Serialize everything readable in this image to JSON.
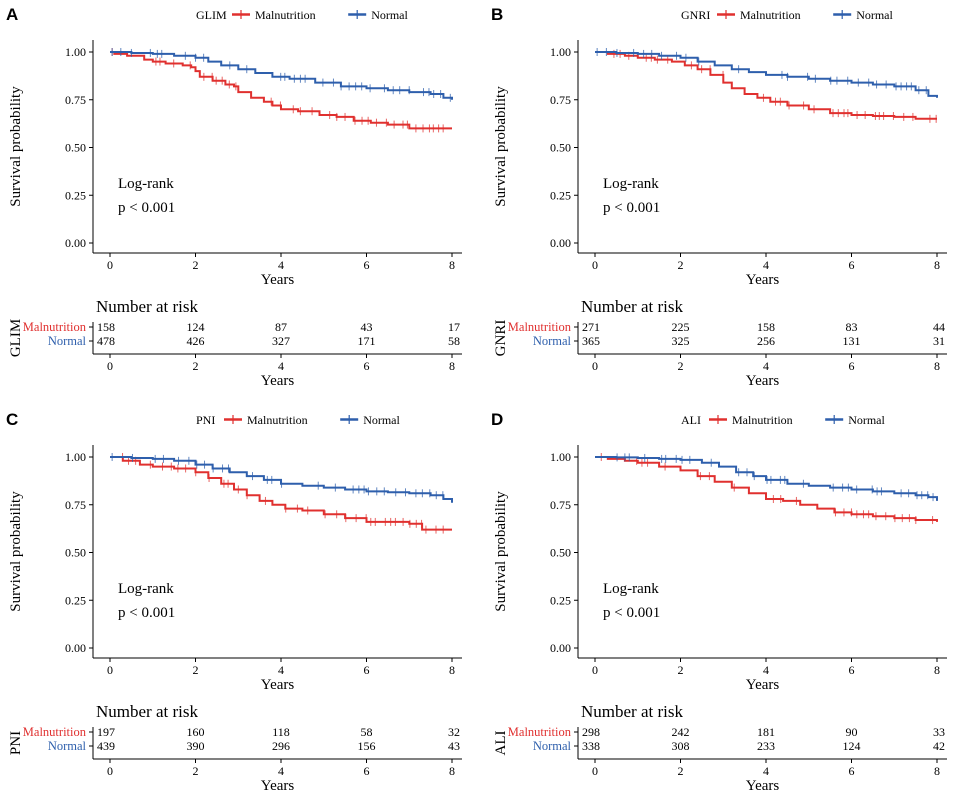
{
  "colors": {
    "malnutrition": "#E0302F",
    "normal": "#2E5FAC",
    "axis": "#000000"
  },
  "chart_data": [
    {
      "type": "line",
      "panel_letter": "A",
      "legend_title": "GLIM",
      "series": [
        {
          "name": "Malnutrition",
          "color": "#E0302F",
          "x": [
            0,
            0.1,
            0.4,
            0.8,
            1.0,
            1.3,
            1.7,
            1.9,
            2.0,
            2.1,
            2.4,
            2.7,
            2.9,
            3.0,
            3.3,
            3.6,
            3.8,
            4.0,
            4.4,
            4.9,
            5.3,
            5.7,
            6.1,
            6.5,
            7.0,
            8.0
          ],
          "y": [
            1.0,
            0.99,
            0.98,
            0.96,
            0.95,
            0.94,
            0.93,
            0.92,
            0.9,
            0.87,
            0.85,
            0.83,
            0.82,
            0.79,
            0.76,
            0.74,
            0.72,
            0.7,
            0.69,
            0.67,
            0.66,
            0.64,
            0.63,
            0.62,
            0.6,
            0.6
          ]
        },
        {
          "name": "Normal",
          "color": "#2E5FAC",
          "x": [
            0,
            0.5,
            1.0,
            1.5,
            2.0,
            2.3,
            2.6,
            3.0,
            3.4,
            3.8,
            4.2,
            4.8,
            5.4,
            6.0,
            6.5,
            7.0,
            7.5,
            7.8,
            8.0
          ],
          "y": [
            1.0,
            0.995,
            0.99,
            0.98,
            0.97,
            0.95,
            0.93,
            0.91,
            0.89,
            0.87,
            0.86,
            0.84,
            0.82,
            0.81,
            0.8,
            0.79,
            0.78,
            0.76,
            0.75
          ]
        }
      ],
      "xlabel": "Years",
      "ylabel": "Survival probability",
      "xlim": [
        0,
        8
      ],
      "ylim": [
        0,
        1
      ],
      "xticks": [
        "0",
        "2",
        "4",
        "6",
        "8"
      ],
      "yticks": [
        "0.00",
        "0.25",
        "0.50",
        "0.75",
        "1.00"
      ],
      "annotation": [
        "Log-rank",
        "p < 0.001"
      ],
      "risk_table": {
        "title": "Number at risk",
        "strata_label": "GLIM",
        "rows": [
          {
            "name": "Malnutrition",
            "values": [
              "158",
              "124",
              "87",
              "43",
              "17"
            ]
          },
          {
            "name": "Normal",
            "values": [
              "478",
              "426",
              "327",
              "171",
              "58"
            ]
          }
        ],
        "xlabel": "Years",
        "xticks": [
          "0",
          "2",
          "4",
          "6",
          "8"
        ]
      }
    },
    {
      "type": "line",
      "panel_letter": "B",
      "legend_title": "GNRI",
      "series": [
        {
          "name": "Malnutrition",
          "color": "#E0302F",
          "x": [
            0,
            0.3,
            0.7,
            1.0,
            1.4,
            1.8,
            2.1,
            2.4,
            2.7,
            3.0,
            3.2,
            3.5,
            3.8,
            4.1,
            4.5,
            5.0,
            5.5,
            6.0,
            6.5,
            7.0,
            7.5,
            8.0
          ],
          "y": [
            1.0,
            0.99,
            0.98,
            0.97,
            0.96,
            0.95,
            0.93,
            0.91,
            0.88,
            0.84,
            0.81,
            0.78,
            0.76,
            0.74,
            0.72,
            0.7,
            0.68,
            0.67,
            0.665,
            0.66,
            0.65,
            0.65
          ]
        },
        {
          "name": "Normal",
          "color": "#2E5FAC",
          "x": [
            0,
            0.5,
            1.0,
            1.5,
            2.0,
            2.4,
            2.8,
            3.2,
            3.6,
            4.0,
            4.5,
            5.0,
            5.5,
            6.0,
            6.5,
            7.0,
            7.5,
            7.8,
            8.0
          ],
          "y": [
            1.0,
            0.995,
            0.99,
            0.98,
            0.97,
            0.95,
            0.93,
            0.91,
            0.895,
            0.88,
            0.87,
            0.86,
            0.85,
            0.84,
            0.83,
            0.82,
            0.8,
            0.77,
            0.76
          ]
        }
      ],
      "xlabel": "Years",
      "ylabel": "Survival probability",
      "xlim": [
        0,
        8
      ],
      "ylim": [
        0,
        1
      ],
      "xticks": [
        "0",
        "2",
        "4",
        "6",
        "8"
      ],
      "yticks": [
        "0.00",
        "0.25",
        "0.50",
        "0.75",
        "1.00"
      ],
      "annotation": [
        "Log-rank",
        "p < 0.001"
      ],
      "risk_table": {
        "title": "Number at risk",
        "strata_label": "GNRI",
        "rows": [
          {
            "name": "Malnutrition",
            "values": [
              "271",
              "225",
              "158",
              "83",
              "44"
            ]
          },
          {
            "name": "Normal",
            "values": [
              "365",
              "325",
              "256",
              "131",
              "31"
            ]
          }
        ],
        "xlabel": "Years",
        "xticks": [
          "0",
          "2",
          "4",
          "6",
          "8"
        ]
      }
    },
    {
      "type": "line",
      "panel_letter": "C",
      "legend_title": "PNI",
      "series": [
        {
          "name": "Malnutrition",
          "color": "#E0302F",
          "x": [
            0,
            0.3,
            0.7,
            1.0,
            1.5,
            2.0,
            2.3,
            2.6,
            2.9,
            3.2,
            3.5,
            3.8,
            4.1,
            4.5,
            5.0,
            5.5,
            6.0,
            6.5,
            7.0,
            7.3,
            8.0
          ],
          "y": [
            1.0,
            0.98,
            0.96,
            0.95,
            0.94,
            0.92,
            0.89,
            0.86,
            0.83,
            0.8,
            0.77,
            0.75,
            0.73,
            0.72,
            0.7,
            0.68,
            0.66,
            0.66,
            0.65,
            0.62,
            0.62
          ]
        },
        {
          "name": "Normal",
          "color": "#2E5FAC",
          "x": [
            0,
            0.5,
            1.0,
            1.5,
            2.0,
            2.4,
            2.8,
            3.2,
            3.6,
            4.0,
            4.5,
            5.0,
            5.5,
            6.0,
            6.5,
            7.0,
            7.5,
            7.8,
            8.0
          ],
          "y": [
            1.0,
            0.995,
            0.99,
            0.98,
            0.96,
            0.94,
            0.92,
            0.9,
            0.88,
            0.86,
            0.85,
            0.84,
            0.83,
            0.82,
            0.815,
            0.81,
            0.8,
            0.78,
            0.76
          ]
        }
      ],
      "xlabel": "Years",
      "ylabel": "Survival probability",
      "xlim": [
        0,
        8
      ],
      "ylim": [
        0,
        1
      ],
      "xticks": [
        "0",
        "2",
        "4",
        "6",
        "8"
      ],
      "yticks": [
        "0.00",
        "0.25",
        "0.50",
        "0.75",
        "1.00"
      ],
      "annotation": [
        "Log-rank",
        "p < 0.001"
      ],
      "risk_table": {
        "title": "Number at risk",
        "strata_label": "PNI",
        "rows": [
          {
            "name": "Malnutrition",
            "values": [
              "197",
              "160",
              "118",
              "58",
              "32"
            ]
          },
          {
            "name": "Normal",
            "values": [
              "439",
              "390",
              "296",
              "156",
              "43"
            ]
          }
        ],
        "xlabel": "Years",
        "xticks": [
          "0",
          "2",
          "4",
          "6",
          "8"
        ]
      }
    },
    {
      "type": "line",
      "panel_letter": "D",
      "legend_title": "ALI",
      "series": [
        {
          "name": "Malnutrition",
          "color": "#E0302F",
          "x": [
            0,
            0.3,
            0.7,
            1.0,
            1.5,
            2.0,
            2.4,
            2.8,
            3.2,
            3.6,
            4.0,
            4.4,
            4.8,
            5.2,
            5.6,
            6.0,
            6.5,
            7.0,
            7.5,
            8.0
          ],
          "y": [
            1.0,
            0.99,
            0.98,
            0.97,
            0.95,
            0.93,
            0.9,
            0.87,
            0.84,
            0.81,
            0.78,
            0.77,
            0.75,
            0.73,
            0.71,
            0.7,
            0.69,
            0.68,
            0.67,
            0.66
          ]
        },
        {
          "name": "Normal",
          "color": "#2E5FAC",
          "x": [
            0,
            0.5,
            1.0,
            1.5,
            2.0,
            2.5,
            2.9,
            3.3,
            3.7,
            4.0,
            4.5,
            5.0,
            5.5,
            6.0,
            6.5,
            7.0,
            7.5,
            7.8,
            8.0
          ],
          "y": [
            1.0,
            0.998,
            0.995,
            0.99,
            0.985,
            0.97,
            0.95,
            0.92,
            0.9,
            0.88,
            0.86,
            0.85,
            0.84,
            0.83,
            0.82,
            0.81,
            0.8,
            0.79,
            0.77
          ]
        }
      ],
      "xlabel": "Years",
      "ylabel": "Survival probability",
      "xlim": [
        0,
        8
      ],
      "ylim": [
        0,
        1
      ],
      "xticks": [
        "0",
        "2",
        "4",
        "6",
        "8"
      ],
      "yticks": [
        "0.00",
        "0.25",
        "0.50",
        "0.75",
        "1.00"
      ],
      "annotation": [
        "Log-rank",
        "p < 0.001"
      ],
      "risk_table": {
        "title": "Number at risk",
        "strata_label": "ALI",
        "rows": [
          {
            "name": "Malnutrition",
            "values": [
              "298",
              "242",
              "181",
              "90",
              "33"
            ]
          },
          {
            "name": "Normal",
            "values": [
              "338",
              "308",
              "233",
              "124",
              "42"
            ]
          }
        ],
        "xlabel": "Years",
        "xticks": [
          "0",
          "2",
          "4",
          "6",
          "8"
        ]
      }
    }
  ]
}
